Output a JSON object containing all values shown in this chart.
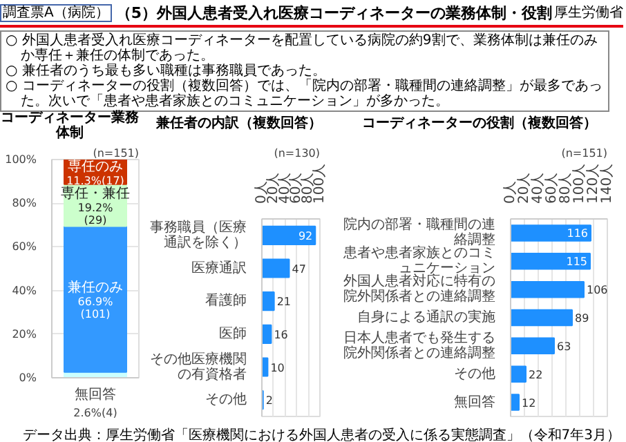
{
  "chart_data": [
    {
      "type": "other",
      "title": "（5）外国人患者受入れ医療コーディネーターの業務体制・役割",
      "annotations": [
        "調査票A（病院）",
        "厚生労働省",
        "○ 外国人患者受入れ医療コーディネーターを配置している病院の約9割で、業務体制は兼任のみか専任＋兼任の体制であった。",
        "○ 兼任者のうち最も多い職種は事務職員であった。",
        "○ コーディネーターの役割（複数回答）では、「院内の部署・職種間の連絡調整」が最多であった。次いで「患者や患者家族とのコミュニケーション」が多かった。",
        "データ出典：厚生労働省「医療機関における外国人患者の受入に係る実態調査」（令和7年3月）"
      ]
    },
    {
      "type": "bar",
      "stacked": true,
      "title": "コーディネーター業務体制",
      "categories": [
        null
      ],
      "ylim": [
        0,
        100
      ],
      "yticks": [
        {
          "value": 0,
          "label": "0%"
        },
        {
          "value": 20,
          "label": "20%"
        },
        {
          "value": 40,
          "label": "40%"
        },
        {
          "value": 60,
          "label": "60%"
        },
        {
          "value": 80,
          "label": "80%"
        },
        {
          "value": 100,
          "label": "100%"
        }
      ],
      "grid": "y",
      "annotations": [
        "(n=151)"
      ],
      "series": [
        {
          "name": "無回答",
          "color": "#ccffff",
          "values": [
            2.6
          ],
          "value_labels": [
            "2.6%(4)"
          ]
        },
        {
          "name": "兼任のみ",
          "color": "#3399ff",
          "values": [
            66.9
          ],
          "value_labels": [
            "66.9%\n(101)"
          ]
        },
        {
          "name": "専任・兼任",
          "color": "#ccffcc",
          "values": [
            19.2
          ],
          "value_labels": [
            "19.2%\n(29)"
          ]
        },
        {
          "name": "専任のみ",
          "color": "#cc3300",
          "values": [
            11.3
          ],
          "value_labels": [
            "11.3%(17)"
          ]
        }
      ]
    },
    {
      "type": "bar",
      "orientation": "horizontal",
      "title": "兼任者の内訳（複数回答）",
      "categories": [
        "事務職員（医療通訳を除く）",
        "医療通訳",
        "看護師",
        "医師",
        "その他医療機関の有資格者",
        "その他"
      ],
      "values": [
        92,
        47,
        21,
        16,
        10,
        2
      ],
      "color": "#1e90ff",
      "xlim": [
        0,
        100
      ],
      "xticks": [
        {
          "value": 0,
          "label": "0人"
        },
        {
          "value": 20,
          "label": "20人"
        },
        {
          "value": 40,
          "label": "40人"
        },
        {
          "value": 60,
          "label": "60人"
        },
        {
          "value": 80,
          "label": "80人"
        },
        {
          "value": 100,
          "label": "100人"
        }
      ],
      "grid": "x",
      "data_labels": true,
      "annotations": [
        "(n=130)"
      ]
    },
    {
      "type": "bar",
      "orientation": "horizontal",
      "title": "コーディネーターの役割（複数回答）",
      "categories": [
        "院内の部署・職種間の連絡調整",
        "患者や患者家族とのコミュニケーション",
        "外国人患者対応に特有の院外関係者との連絡調整",
        "自身による通訳の実施",
        "日本人患者でも発生する院外関係者との連絡調整",
        "その他",
        "無回答"
      ],
      "values": [
        116,
        115,
        106,
        89,
        63,
        22,
        12
      ],
      "color": "#1e90ff",
      "xlim": [
        0,
        140
      ],
      "xticks": [
        {
          "value": 0,
          "label": "0人"
        },
        {
          "value": 20,
          "label": "20人"
        },
        {
          "value": 40,
          "label": "40人"
        },
        {
          "value": 60,
          "label": "60人"
        },
        {
          "value": 80,
          "label": "80人"
        },
        {
          "value": 100,
          "label": "100人"
        },
        {
          "value": 120,
          "label": "120人"
        },
        {
          "value": 140,
          "label": "140人"
        }
      ],
      "grid": "x",
      "data_labels": true,
      "annotations": [
        "(n=151)"
      ]
    }
  ]
}
